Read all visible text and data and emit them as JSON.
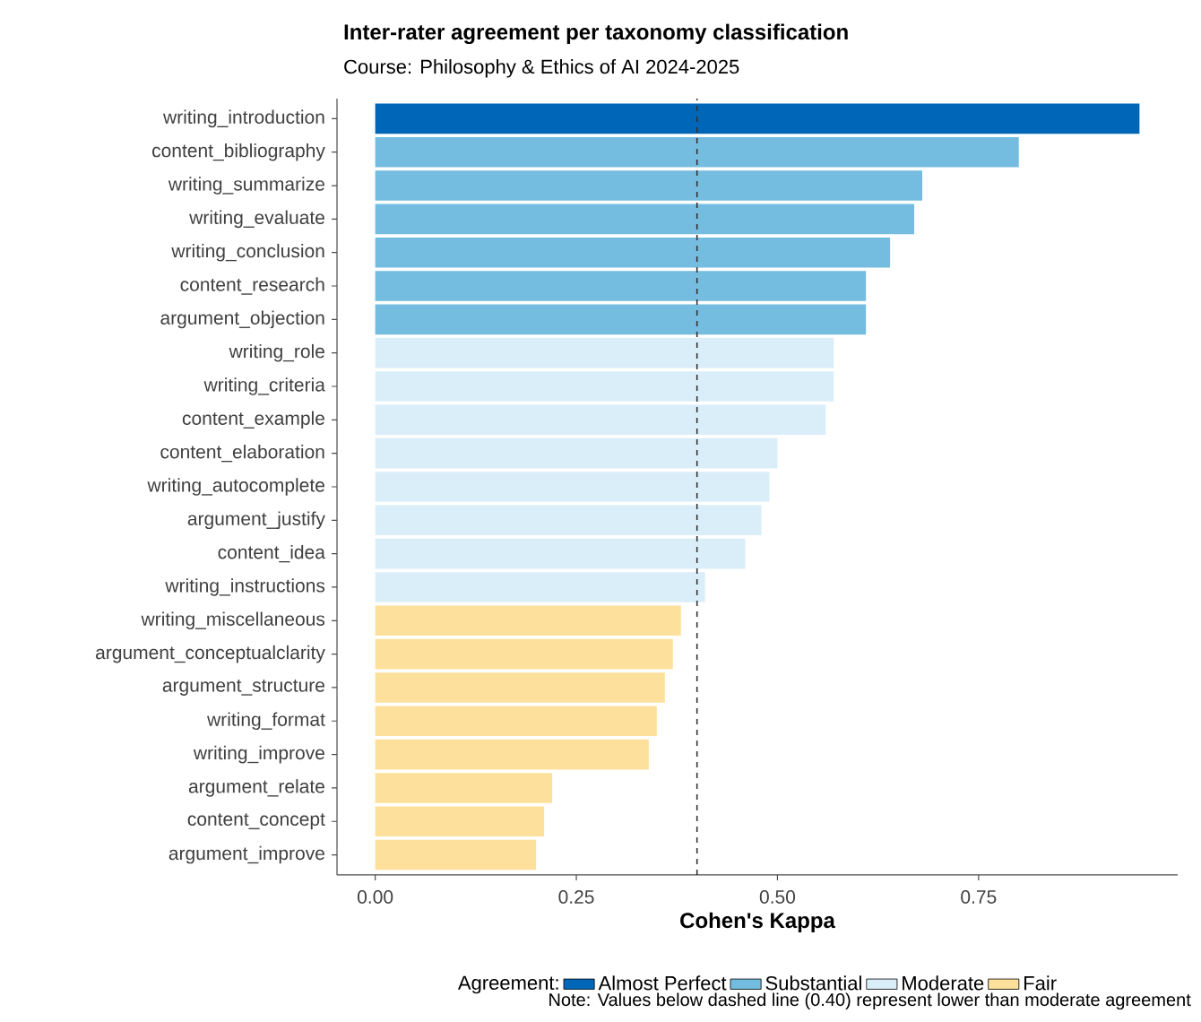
{
  "chart_data": {
    "type": "bar",
    "orientation": "horizontal",
    "title": "Inter-rater agreement per taxonomy classification",
    "subtitle": "Course: Philosophy & Ethics of AI 2024-2025",
    "xlabel": "Cohen's Kappa",
    "legend_title": "Agreement:",
    "categories": [
      "writing_introduction",
      "content_bibliography",
      "writing_summarize",
      "writing_evaluate",
      "writing_conclusion",
      "content_research",
      "argument_objection",
      "writing_role",
      "writing_criteria",
      "content_example",
      "content_elaboration",
      "writing_autocomplete",
      "argument_justify",
      "content_idea",
      "writing_instructions",
      "writing_miscellaneous",
      "argument_conceptualclarity",
      "argument_structure",
      "writing_format",
      "writing_improve",
      "argument_relate",
      "content_concept",
      "argument_improve"
    ],
    "series": [
      {
        "name": "Almost Perfect",
        "color": "#0066b8",
        "values": [
          0.95,
          null,
          null,
          null,
          null,
          null,
          null,
          null,
          null,
          null,
          null,
          null,
          null,
          null,
          null,
          null,
          null,
          null,
          null,
          null,
          null,
          null,
          null
        ]
      },
      {
        "name": "Substantial",
        "color": "#74bde0",
        "values": [
          null,
          0.8,
          0.68,
          0.67,
          0.64,
          0.61,
          0.61,
          null,
          null,
          null,
          null,
          null,
          null,
          null,
          null,
          null,
          null,
          null,
          null,
          null,
          null,
          null,
          null
        ]
      },
      {
        "name": "Moderate",
        "color": "#daeefa",
        "values": [
          null,
          null,
          null,
          null,
          null,
          null,
          null,
          0.57,
          0.57,
          0.56,
          0.5,
          0.49,
          0.48,
          0.46,
          0.41,
          null,
          null,
          null,
          null,
          null,
          null,
          null,
          null
        ]
      },
      {
        "name": "Fair",
        "color": "#fde09c",
        "values": [
          null,
          null,
          null,
          null,
          null,
          null,
          null,
          null,
          null,
          null,
          null,
          null,
          null,
          null,
          null,
          0.38,
          0.37,
          0.36,
          0.35,
          0.34,
          0.22,
          0.21,
          0.2
        ]
      }
    ],
    "xlim": [
      -0.0475,
      0.9975
    ],
    "xticks": [
      {
        "value": 0,
        "label": "0.00"
      },
      {
        "value": 0.25,
        "label": "0.25"
      },
      {
        "value": 0.5,
        "label": "0.50"
      },
      {
        "value": 0.75,
        "label": "0.75"
      }
    ],
    "ref_lines": [
      {
        "axis": "x",
        "value": 0.4,
        "line_style": "dashed",
        "color": "#333333"
      }
    ],
    "legend": "bottom",
    "grid": false,
    "annotations": [
      "Note: Values below dashed line (0.40) represent lower than moderate agreement"
    ]
  }
}
